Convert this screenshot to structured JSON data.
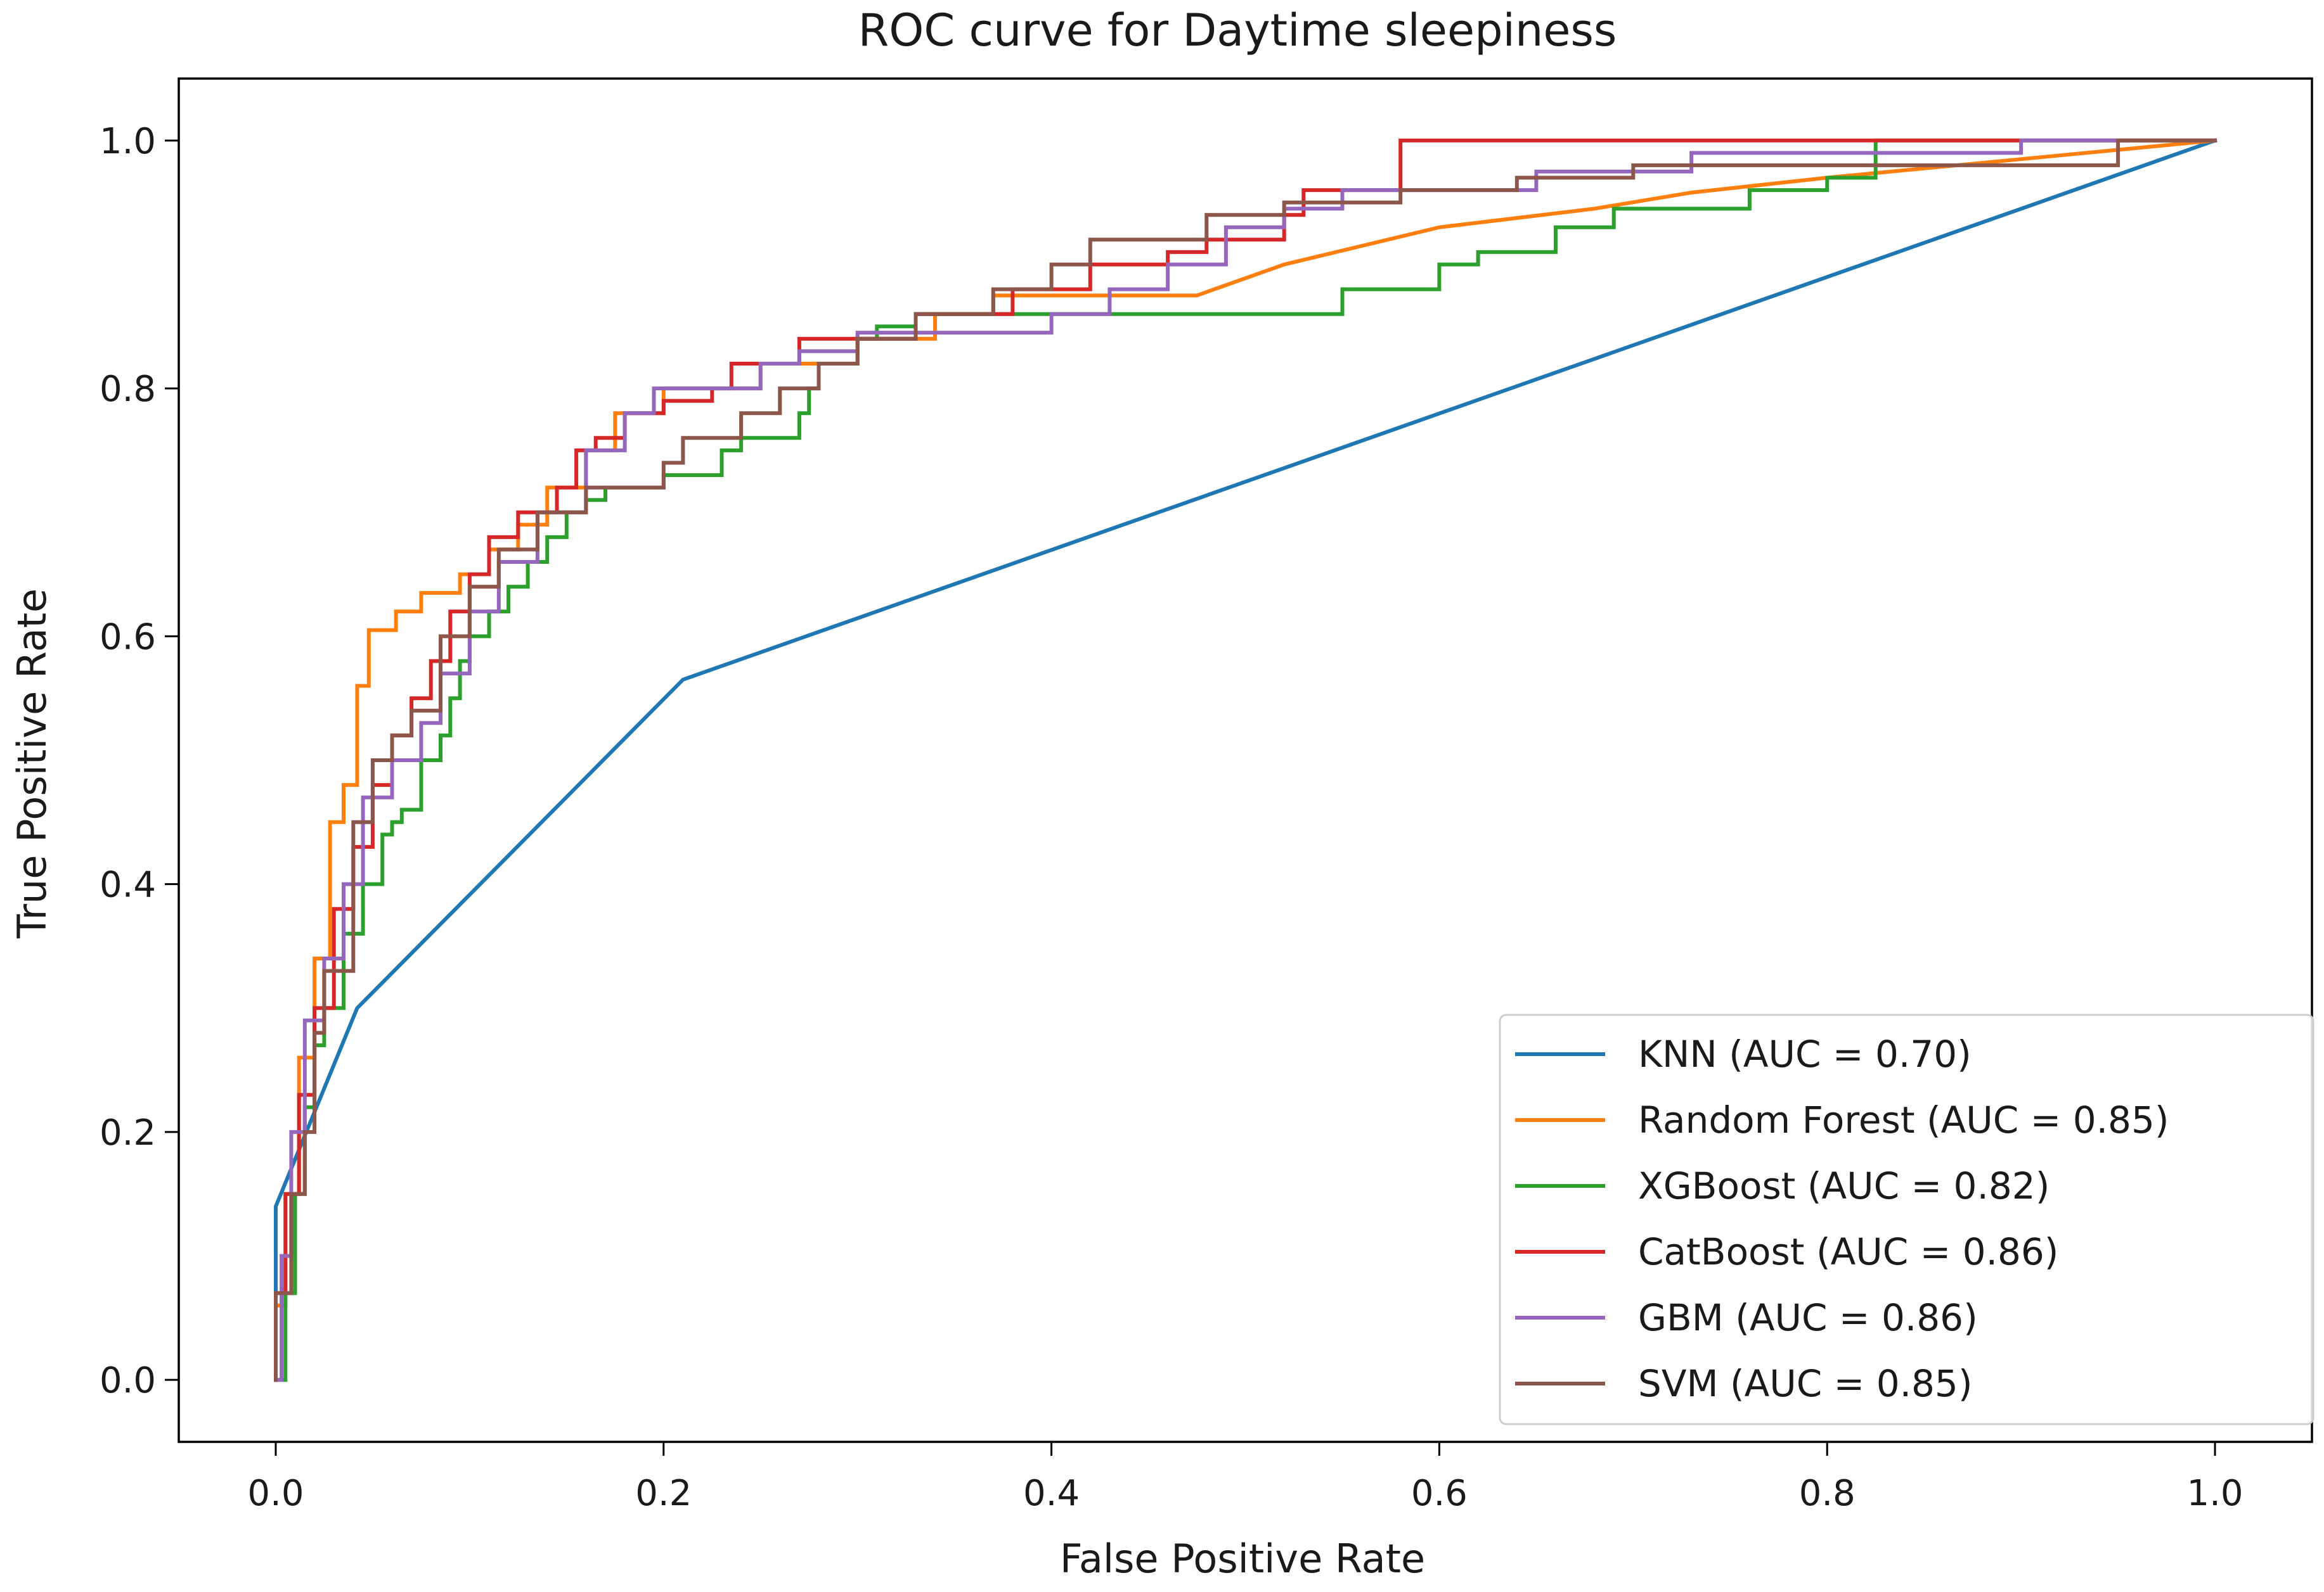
{
  "chart_data": {
    "type": "line",
    "title": "ROC curve for Daytime sleepiness",
    "xlabel": "False Positive Rate",
    "ylabel": "True Positive Rate",
    "xlim": [
      -0.05,
      1.05
    ],
    "ylim": [
      -0.05,
      1.05
    ],
    "grid": false,
    "legend_position": "lower-right",
    "x_ticks": [
      0.0,
      0.2,
      0.4,
      0.6,
      0.8,
      1.0
    ],
    "x_tick_labels": [
      "0.0",
      "0.2",
      "0.4",
      "0.6",
      "0.8",
      "1.0"
    ],
    "y_ticks": [
      0.0,
      0.2,
      0.4,
      0.6,
      0.8,
      1.0
    ],
    "y_tick_labels": [
      "0.0",
      "0.2",
      "0.4",
      "0.6",
      "0.8",
      "1.0"
    ],
    "series": [
      {
        "name": "KNN",
        "legend_label": "KNN (AUC = 0.70)",
        "color": "#1f77b4",
        "x": [
          0.0,
          0.0,
          0.042,
          0.21,
          1.0
        ],
        "y": [
          0.0,
          0.14,
          0.3,
          0.565,
          1.0
        ]
      },
      {
        "name": "Random Forest",
        "legend_label": "Random Forest (AUC = 0.85)",
        "color": "#ff7f0e",
        "x": [
          0.0,
          0.0,
          0.005,
          0.005,
          0.012,
          0.012,
          0.02,
          0.02,
          0.028,
          0.028,
          0.035,
          0.035,
          0.042,
          0.042,
          0.048,
          0.048,
          0.062,
          0.062,
          0.075,
          0.075,
          0.095,
          0.095,
          0.11,
          0.11,
          0.125,
          0.125,
          0.14,
          0.14,
          0.16,
          0.16,
          0.175,
          0.175,
          0.2,
          0.2,
          0.25,
          0.25,
          0.3,
          0.3,
          0.34,
          0.34,
          0.37,
          0.37,
          0.475,
          0.52,
          0.6,
          0.68,
          0.73,
          0.8,
          0.9,
          1.0
        ],
        "y": [
          0.0,
          0.06,
          0.06,
          0.15,
          0.15,
          0.26,
          0.26,
          0.34,
          0.34,
          0.45,
          0.45,
          0.48,
          0.48,
          0.56,
          0.56,
          0.605,
          0.605,
          0.62,
          0.62,
          0.635,
          0.635,
          0.65,
          0.65,
          0.67,
          0.67,
          0.69,
          0.69,
          0.72,
          0.72,
          0.75,
          0.75,
          0.78,
          0.78,
          0.8,
          0.8,
          0.82,
          0.82,
          0.84,
          0.84,
          0.86,
          0.86,
          0.875,
          0.875,
          0.9,
          0.93,
          0.945,
          0.958,
          0.97,
          0.985,
          1.0
        ]
      },
      {
        "name": "XGBoost",
        "legend_label": "XGBoost (AUC = 0.82)",
        "color": "#2ca02c",
        "x": [
          0.0,
          0.005,
          0.005,
          0.01,
          0.01,
          0.015,
          0.015,
          0.02,
          0.02,
          0.025,
          0.025,
          0.035,
          0.035,
          0.045,
          0.045,
          0.055,
          0.055,
          0.06,
          0.06,
          0.065,
          0.065,
          0.075,
          0.075,
          0.085,
          0.085,
          0.09,
          0.09,
          0.095,
          0.095,
          0.1,
          0.1,
          0.11,
          0.11,
          0.12,
          0.12,
          0.13,
          0.13,
          0.14,
          0.14,
          0.15,
          0.15,
          0.16,
          0.16,
          0.17,
          0.17,
          0.2,
          0.2,
          0.23,
          0.23,
          0.24,
          0.24,
          0.27,
          0.27,
          0.275,
          0.275,
          0.28,
          0.28,
          0.3,
          0.3,
          0.31,
          0.31,
          0.33,
          0.33,
          0.55,
          0.55,
          0.6,
          0.6,
          0.62,
          0.62,
          0.66,
          0.66,
          0.69,
          0.69,
          0.76,
          0.76,
          0.8,
          0.8,
          0.825,
          0.825,
          1.0
        ],
        "y": [
          0.0,
          0.0,
          0.07,
          0.07,
          0.15,
          0.15,
          0.22,
          0.22,
          0.27,
          0.27,
          0.3,
          0.3,
          0.36,
          0.36,
          0.4,
          0.4,
          0.44,
          0.44,
          0.45,
          0.45,
          0.46,
          0.46,
          0.5,
          0.5,
          0.52,
          0.52,
          0.55,
          0.55,
          0.58,
          0.58,
          0.6,
          0.6,
          0.62,
          0.62,
          0.64,
          0.64,
          0.66,
          0.66,
          0.68,
          0.68,
          0.7,
          0.7,
          0.71,
          0.71,
          0.72,
          0.72,
          0.73,
          0.73,
          0.75,
          0.75,
          0.76,
          0.76,
          0.78,
          0.78,
          0.8,
          0.8,
          0.82,
          0.82,
          0.84,
          0.84,
          0.85,
          0.85,
          0.86,
          0.86,
          0.88,
          0.88,
          0.9,
          0.9,
          0.91,
          0.91,
          0.93,
          0.93,
          0.945,
          0.945,
          0.96,
          0.96,
          0.97,
          0.97,
          1.0,
          1.0
        ]
      },
      {
        "name": "CatBoost",
        "legend_label": "CatBoost (AUC = 0.86)",
        "color": "#d62728",
        "x": [
          0.0,
          0.0,
          0.005,
          0.005,
          0.012,
          0.012,
          0.02,
          0.02,
          0.03,
          0.03,
          0.04,
          0.04,
          0.05,
          0.05,
          0.06,
          0.06,
          0.07,
          0.07,
          0.08,
          0.08,
          0.09,
          0.09,
          0.1,
          0.1,
          0.11,
          0.11,
          0.125,
          0.125,
          0.145,
          0.145,
          0.155,
          0.155,
          0.165,
          0.165,
          0.18,
          0.18,
          0.2,
          0.2,
          0.225,
          0.225,
          0.235,
          0.235,
          0.27,
          0.27,
          0.33,
          0.33,
          0.38,
          0.38,
          0.42,
          0.42,
          0.46,
          0.46,
          0.48,
          0.48,
          0.52,
          0.52,
          0.53,
          0.53,
          0.58,
          0.58,
          0.7,
          0.7,
          0.9,
          0.9,
          1.0
        ],
        "y": [
          0.0,
          0.07,
          0.07,
          0.15,
          0.15,
          0.23,
          0.23,
          0.3,
          0.3,
          0.38,
          0.38,
          0.43,
          0.43,
          0.48,
          0.48,
          0.52,
          0.52,
          0.55,
          0.55,
          0.58,
          0.58,
          0.62,
          0.62,
          0.65,
          0.65,
          0.68,
          0.68,
          0.7,
          0.7,
          0.72,
          0.72,
          0.75,
          0.75,
          0.76,
          0.76,
          0.78,
          0.78,
          0.79,
          0.79,
          0.8,
          0.8,
          0.82,
          0.82,
          0.84,
          0.84,
          0.86,
          0.86,
          0.88,
          0.88,
          0.9,
          0.9,
          0.91,
          0.91,
          0.92,
          0.92,
          0.94,
          0.94,
          0.96,
          0.96,
          1.0,
          1.0,
          1.0,
          1.0,
          1.0,
          1.0
        ]
      },
      {
        "name": "GBM",
        "legend_label": "GBM (AUC = 0.86)",
        "color": "#9467bd",
        "x": [
          0.0,
          0.003,
          0.003,
          0.008,
          0.008,
          0.015,
          0.015,
          0.025,
          0.025,
          0.035,
          0.035,
          0.045,
          0.045,
          0.06,
          0.06,
          0.075,
          0.075,
          0.085,
          0.085,
          0.1,
          0.1,
          0.115,
          0.115,
          0.135,
          0.135,
          0.16,
          0.16,
          0.18,
          0.18,
          0.195,
          0.195,
          0.25,
          0.25,
          0.27,
          0.27,
          0.3,
          0.3,
          0.4,
          0.4,
          0.43,
          0.43,
          0.46,
          0.46,
          0.49,
          0.49,
          0.52,
          0.52,
          0.55,
          0.55,
          0.65,
          0.65,
          0.73,
          0.73,
          0.9,
          0.9,
          1.0
        ],
        "y": [
          0.0,
          0.0,
          0.1,
          0.1,
          0.2,
          0.2,
          0.29,
          0.29,
          0.34,
          0.34,
          0.4,
          0.4,
          0.47,
          0.47,
          0.5,
          0.5,
          0.53,
          0.53,
          0.57,
          0.57,
          0.62,
          0.62,
          0.66,
          0.66,
          0.7,
          0.7,
          0.75,
          0.75,
          0.78,
          0.78,
          0.8,
          0.8,
          0.82,
          0.82,
          0.83,
          0.83,
          0.845,
          0.845,
          0.86,
          0.86,
          0.88,
          0.88,
          0.9,
          0.9,
          0.93,
          0.93,
          0.945,
          0.945,
          0.96,
          0.96,
          0.975,
          0.975,
          0.99,
          0.99,
          1.0,
          1.0
        ]
      },
      {
        "name": "SVM",
        "legend_label": "SVM (AUC = 0.85)",
        "color": "#8c564b",
        "x": [
          0.0,
          0.0,
          0.008,
          0.008,
          0.015,
          0.015,
          0.02,
          0.02,
          0.025,
          0.025,
          0.04,
          0.04,
          0.05,
          0.05,
          0.06,
          0.06,
          0.07,
          0.07,
          0.085,
          0.085,
          0.1,
          0.1,
          0.115,
          0.115,
          0.135,
          0.135,
          0.16,
          0.16,
          0.2,
          0.2,
          0.21,
          0.21,
          0.24,
          0.24,
          0.26,
          0.26,
          0.28,
          0.28,
          0.3,
          0.3,
          0.33,
          0.33,
          0.37,
          0.37,
          0.4,
          0.4,
          0.42,
          0.42,
          0.48,
          0.48,
          0.52,
          0.52,
          0.58,
          0.58,
          0.64,
          0.64,
          0.7,
          0.7,
          0.95,
          0.95,
          1.0
        ],
        "y": [
          0.0,
          0.07,
          0.07,
          0.15,
          0.15,
          0.2,
          0.2,
          0.28,
          0.28,
          0.33,
          0.33,
          0.45,
          0.45,
          0.5,
          0.5,
          0.52,
          0.52,
          0.54,
          0.54,
          0.6,
          0.6,
          0.64,
          0.64,
          0.67,
          0.67,
          0.7,
          0.7,
          0.72,
          0.72,
          0.74,
          0.74,
          0.76,
          0.76,
          0.78,
          0.78,
          0.8,
          0.8,
          0.82,
          0.82,
          0.84,
          0.84,
          0.86,
          0.86,
          0.88,
          0.88,
          0.9,
          0.9,
          0.92,
          0.92,
          0.94,
          0.94,
          0.95,
          0.95,
          0.96,
          0.96,
          0.97,
          0.97,
          0.98,
          0.98,
          1.0,
          1.0
        ]
      }
    ]
  }
}
